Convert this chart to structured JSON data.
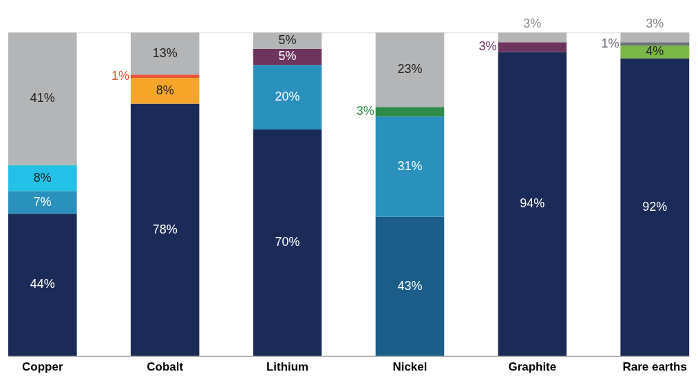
{
  "chart_data": {
    "type": "bar",
    "stacked": true,
    "tick_labels": "x",
    "grid": false,
    "categories": [
      "Copper",
      "Cobalt",
      "Lithium",
      "Nickel",
      "Graphite",
      "Rare earths"
    ],
    "series": [
      {
        "values": [
          44,
          78,
          70,
          43,
          94,
          92
        ],
        "colors": [
          "#1b2b57",
          "#1b2b57",
          "#1b2b57",
          "#1b5e8a",
          "#1b2b57",
          "#1b2b57"
        ],
        "value_labels": [
          "44%",
          "78%",
          "70%",
          "43%",
          "94%",
          "92%"
        ]
      },
      {
        "values": [
          7,
          8,
          20,
          31,
          null,
          4
        ],
        "colors": [
          "#2a90bd",
          "#f5a52a",
          "#2a90bd",
          "#2a90bd",
          null,
          "#7ab648"
        ],
        "value_labels": [
          "7%",
          "8%",
          "20%",
          "31%",
          null,
          "4%"
        ]
      },
      {
        "values": [
          8,
          1,
          5,
          3,
          3,
          1
        ],
        "colors": [
          "#25c0e8",
          "#e8543a",
          "#6e3460",
          "#2e8b4a",
          "#6e3460",
          "#6d7178"
        ],
        "value_labels": [
          "8%",
          "1%",
          "5%",
          "3%",
          "3%",
          "1%"
        ]
      },
      {
        "values": [
          41,
          13,
          5,
          23,
          3,
          3
        ],
        "colors": [
          "#b3b5b6",
          "#b3b5b6",
          "#b3b5b6",
          "#b3b5b6",
          "#b3b5b6",
          "#b3b5b6"
        ],
        "value_labels": [
          "41%",
          "13%",
          "5%",
          "23%",
          "3%",
          "3%"
        ]
      }
    ]
  }
}
